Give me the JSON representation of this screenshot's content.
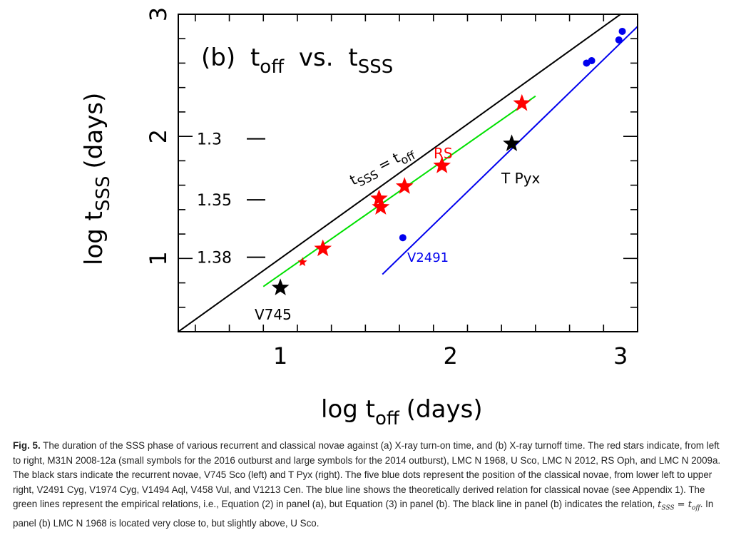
{
  "chart_data": {
    "type": "scatter",
    "panel_label": "(b)",
    "title_main": "t",
    "title_main_sub": "off",
    "title_vs": "vs.",
    "title_second": "t",
    "title_second_sub": "SSS",
    "xlabel_prefix": "log t",
    "xlabel_sub": "off",
    "xlabel_suffix": "(days)",
    "ylabel_prefix": "log t",
    "ylabel_sub": "SSS",
    "ylabel_suffix": "(days)",
    "xlim": [
      0.4,
      3.1
    ],
    "ylim": [
      0.4,
      3.0
    ],
    "x_ticks": [
      {
        "value": 1,
        "label": "1"
      },
      {
        "value": 2,
        "label": "2"
      },
      {
        "value": 3,
        "label": "3"
      }
    ],
    "y_ticks": [
      {
        "value": 1,
        "label": "1"
      },
      {
        "value": 2,
        "label": "2"
      },
      {
        "value": 3,
        "label": "3"
      }
    ],
    "inner_scale": [
      {
        "value": 1.98,
        "label": "1.3"
      },
      {
        "value": 1.48,
        "label": "1.35"
      },
      {
        "value": 1.01,
        "label": "1.38"
      }
    ],
    "black_line": {
      "x": [
        0.4,
        3.1
      ],
      "y": [
        0.4,
        3.1
      ],
      "color": "#000000"
    },
    "green_line": {
      "x": [
        0.9,
        2.5
      ],
      "y": [
        0.77,
        2.33
      ],
      "color": "#00e000"
    },
    "blue_line": {
      "x": [
        1.6,
        3.1
      ],
      "y": [
        0.87,
        2.9
      ],
      "color": "#0000ee"
    },
    "red_stars_large": {
      "x": [
        1.25,
        1.58,
        1.59,
        1.73,
        1.95,
        2.42
      ],
      "y": [
        1.08,
        1.49,
        1.42,
        1.59,
        1.76,
        2.27
      ],
      "color": "#ff0000"
    },
    "red_stars_small": {
      "x": [
        1.13
      ],
      "y": [
        0.97
      ],
      "color": "#ff0000"
    },
    "black_stars": {
      "x": [
        1.0,
        2.36
      ],
      "y": [
        0.76,
        1.94
      ],
      "color": "#000000"
    },
    "blue_dots": {
      "x": [
        1.72,
        2.8,
        2.83,
        2.99,
        3.01
      ],
      "y": [
        1.17,
        2.6,
        2.62,
        2.79,
        2.86
      ],
      "color": "#0000ee"
    },
    "annotations": {
      "equality_prefix": "t",
      "equality_sub1": "SSS",
      "equality_eq": " = t",
      "equality_sub2": "off",
      "rs": "RS",
      "v745": "V745",
      "tpyx": "T Pyx",
      "v2491": "V2491"
    }
  },
  "caption": {
    "fig_label": "Fig. 5.",
    "text1": " The duration of the SSS phase of various recurrent and classical novae against (a) X-ray turn-on time, and (b) X-ray turnoff time. The red stars indicate, from left to right, M31N 2008-12a (small symbols for the 2016 outburst and large symbols for the 2014 outburst), LMC N 1968, U Sco, LMC N 2012, RS Oph, and LMC N 2009a. The black stars indicate the recurrent novae, V745 Sco (left) and T Pyx (right). The five blue dots represent the position of the classical novae, from lower left to upper right, V2491 Cyg, V1974 Cyg, V1494 Aql, V458 Vul, and V1213 Cen. The blue line shows the theoretically derived relation for classical novae (see Appendix 1). The green lines represent the empirical relations, i.e., Equation (2) in panel (a), but Equation (3) in panel (b). The black line in panel (b) indicates the relation, ",
    "eq_lhs": "t",
    "eq_lhs_sub": "SSS",
    "eq_mid": " = t",
    "eq_rhs_sub": "off",
    "text2": ". In panel (b) LMC N 1968 is located very close to, but slightly above, U Sco."
  }
}
